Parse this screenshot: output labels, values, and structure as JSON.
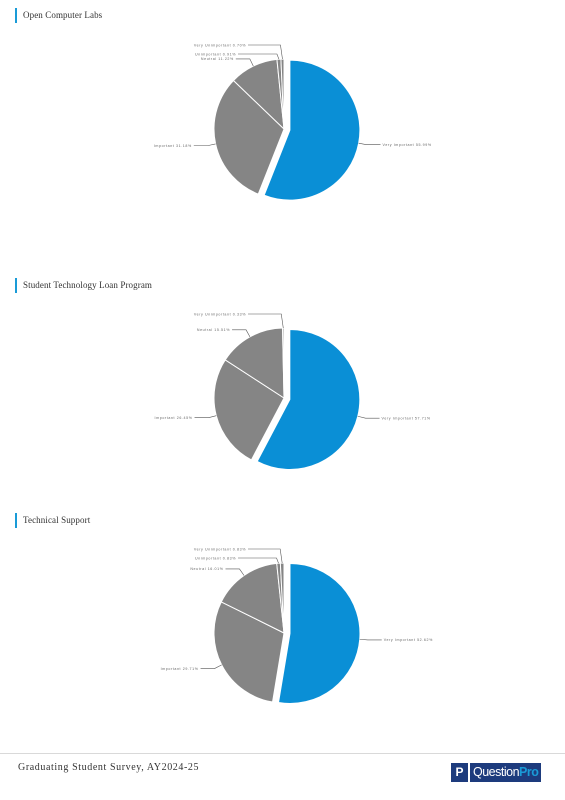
{
  "chart_data": [
    {
      "type": "pie",
      "title": "Open Computer Labs",
      "slices": [
        {
          "label": "Very Important",
          "percent": "55.99%",
          "value": 55.99,
          "color": "#0a8fd6"
        },
        {
          "label": "Important",
          "percent": "31.18%",
          "value": 31.18,
          "color": "#858585"
        },
        {
          "label": "Neutral",
          "percent": "11.22%",
          "value": 11.22,
          "color": "#858585"
        },
        {
          "label": "Unimportant",
          "percent": "0.91%",
          "value": 0.91,
          "color": "#858585"
        },
        {
          "label": "Very Unimportant",
          "percent": "0.70%",
          "value": 0.7,
          "color": "#858585"
        }
      ]
    },
    {
      "type": "pie",
      "title": "Student Technology Loan Program",
      "slices": [
        {
          "label": "Very Important",
          "percent": "57.71%",
          "value": 57.71,
          "color": "#0a8fd6"
        },
        {
          "label": "Important",
          "percent": "26.45%",
          "value": 26.45,
          "color": "#858585"
        },
        {
          "label": "Neutral",
          "percent": "15.51%",
          "value": 15.51,
          "color": "#858585"
        },
        {
          "label": "Very Unimportant",
          "percent": "0.33%",
          "value": 0.33,
          "color": "#858585"
        }
      ]
    },
    {
      "type": "pie",
      "title": "Technical Support",
      "slices": [
        {
          "label": "Very Important",
          "percent": "52.62%",
          "value": 52.62,
          "color": "#0a8fd6"
        },
        {
          "label": "Important",
          "percent": "29.71%",
          "value": 29.71,
          "color": "#858585"
        },
        {
          "label": "Neutral",
          "percent": "16.01%",
          "value": 16.01,
          "color": "#858585"
        },
        {
          "label": "Unimportant",
          "percent": "0.83%",
          "value": 0.83,
          "color": "#858585"
        },
        {
          "label": "Very Unimportant",
          "percent": "0.83%",
          "value": 0.83,
          "color": "#858585"
        }
      ]
    }
  ],
  "footer": {
    "survey_title": "Graduating Student Survey, AY2024-25",
    "logo_mark": "P",
    "logo_question": "Question",
    "logo_pro": "Pro"
  }
}
